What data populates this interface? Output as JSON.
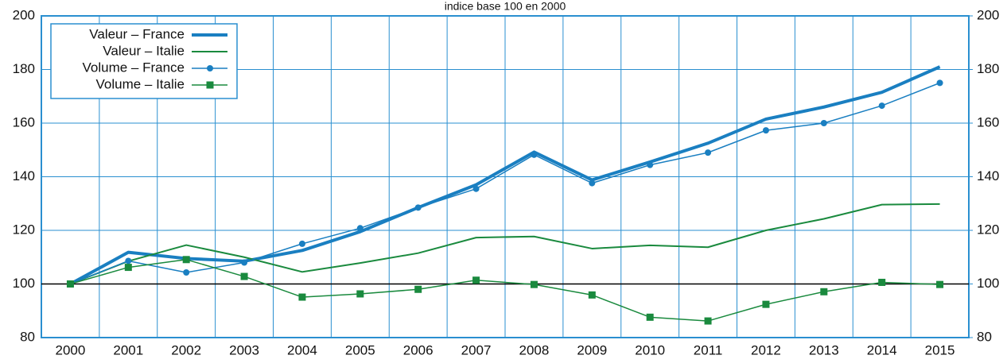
{
  "chart_data": {
    "type": "line",
    "title": "indice base 100 en 2000",
    "categories": [
      "2000",
      "2001",
      "2002",
      "2003",
      "2004",
      "2005",
      "2006",
      "2007",
      "2008",
      "2009",
      "2010",
      "2011",
      "2012",
      "2013",
      "2014",
      "2015"
    ],
    "series": [
      {
        "name": "Valeur – France",
        "color": "#1a7fc1",
        "line_width": 4,
        "marker": "none",
        "values": [
          100,
          111.8,
          109.5,
          108.5,
          112.5,
          119.5,
          128.5,
          137,
          149.2,
          138.8,
          145.5,
          152.5,
          161.5,
          166,
          171.5,
          181
        ]
      },
      {
        "name": "Valeur – Italie",
        "color": "#1a8a3e",
        "line_width": 2,
        "marker": "none",
        "values": [
          100,
          108.5,
          114.5,
          110,
          104.5,
          107.8,
          111.5,
          117.3,
          117.7,
          113.2,
          114.4,
          113.7,
          120,
          124.3,
          129.6,
          129.8
        ]
      },
      {
        "name": "Volume – France",
        "color": "#1a7fc1",
        "line_width": 1.5,
        "marker": "circle",
        "values": [
          100,
          108.6,
          104.3,
          108,
          115,
          120.8,
          128.5,
          135.5,
          148.2,
          137.6,
          144.4,
          149,
          157.3,
          160,
          166.5,
          175
        ]
      },
      {
        "name": "Volume – Italie",
        "color": "#1a8a3e",
        "line_width": 1.5,
        "marker": "square",
        "values": [
          100,
          106.2,
          109.1,
          102.8,
          95.1,
          96.3,
          98,
          101.4,
          99.8,
          95.9,
          87.6,
          86.2,
          92.4,
          97.1,
          100.6,
          99.8
        ]
      }
    ],
    "ylim": [
      80,
      200
    ],
    "yticks": [
      80,
      100,
      120,
      140,
      160,
      180,
      200
    ],
    "y2lim": [
      80,
      200
    ],
    "y2ticks": [
      80,
      100,
      120,
      140,
      160,
      180,
      200
    ],
    "hline": 100,
    "grid": true,
    "legend": "top-left"
  }
}
